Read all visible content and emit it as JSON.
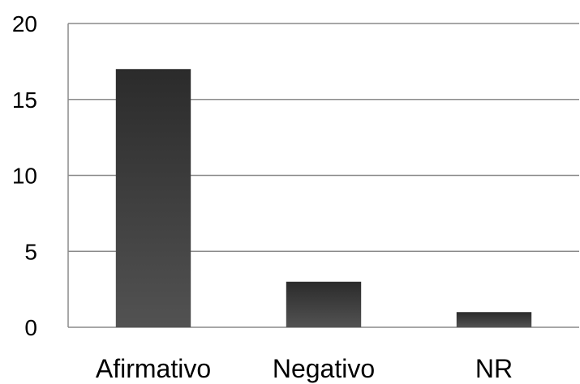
{
  "chart_data": {
    "type": "bar",
    "title": "",
    "xlabel": "",
    "ylabel": "",
    "categories": [
      "Afirmativo",
      "Negativo",
      "NR"
    ],
    "values": [
      17,
      3,
      1
    ],
    "ylim": [
      0,
      20
    ],
    "yticks": [
      0,
      5,
      10,
      15,
      20
    ],
    "grid": true,
    "legend": "none",
    "bar_color_dark": "#2b2b2b",
    "bar_color_light": "#525252",
    "grid_color": "#8a8a8a",
    "axis_color": "#8a8a8a"
  }
}
